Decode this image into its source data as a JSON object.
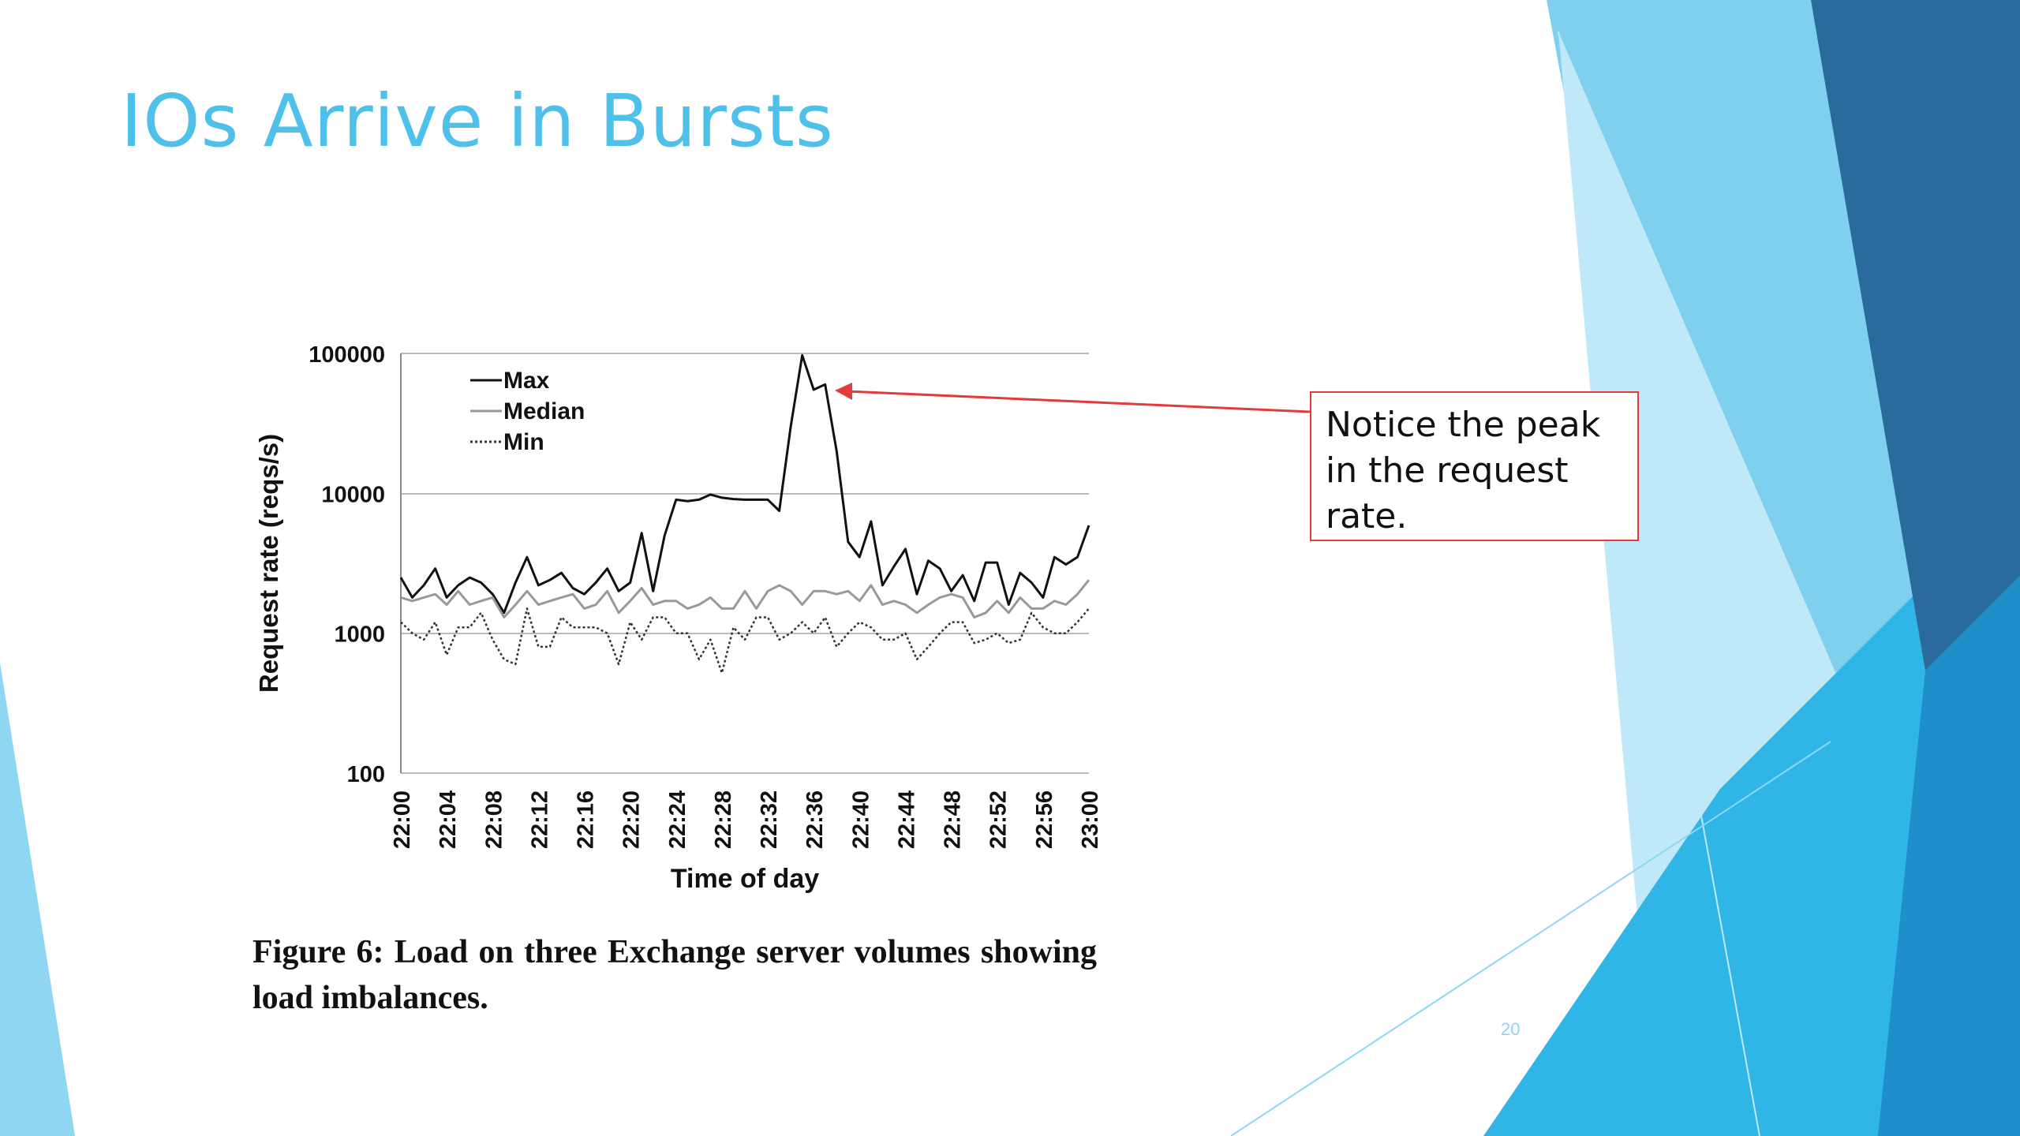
{
  "slide": {
    "title": "IOs Arrive in Bursts",
    "caption": "Figure 6:  Load on three Exchange server volumes showing load imbalances.",
    "callout": "Notice the peak in the request rate.",
    "page_number": "20",
    "colors": {
      "title": "#4fc0ea",
      "accent": "#e23b3b",
      "decor_light": "#7fd0ef",
      "decor_mid": "#2fb0e0",
      "decor_dark": "#2a6a9c"
    }
  },
  "chart_data": {
    "type": "line",
    "title": "",
    "xlabel": "Time of day",
    "ylabel": "Request rate (reqs/s)",
    "yscale": "log",
    "ylim": [
      100,
      100000
    ],
    "yticks": [
      "100000",
      "10000",
      "1000",
      "100"
    ],
    "xticks": [
      "22:00",
      "22:04",
      "22:08",
      "22:12",
      "22:16",
      "22:20",
      "22:24",
      "22:28",
      "22:32",
      "22:36",
      "22:40",
      "22:44",
      "22:48",
      "22:52",
      "22:56",
      "23:00"
    ],
    "grid": "horizontal",
    "legend_position": "top-left",
    "x_minutes": [
      0,
      1,
      2,
      3,
      4,
      5,
      6,
      7,
      8,
      9,
      10,
      11,
      12,
      13,
      14,
      15,
      16,
      17,
      18,
      19,
      20,
      21,
      22,
      23,
      24,
      25,
      26,
      27,
      28,
      29,
      30,
      31,
      32,
      33,
      34,
      35,
      36,
      37,
      38,
      39,
      40,
      41,
      42,
      43,
      44,
      45,
      46,
      47,
      48,
      49,
      50,
      51,
      52,
      53,
      54,
      55,
      56,
      57,
      58,
      59,
      60
    ],
    "series": [
      {
        "name": "Max",
        "style": "solid",
        "color": "#111111",
        "values": [
          2500,
          1800,
          2200,
          2900,
          1800,
          2200,
          2500,
          2300,
          1900,
          1400,
          2300,
          3500,
          2200,
          2400,
          2700,
          2100,
          1900,
          2300,
          2900,
          2000,
          2300,
          5200,
          2000,
          5000,
          9000,
          8800,
          9000,
          9800,
          9300,
          9100,
          9000,
          9000,
          9000,
          7500,
          30000,
          97000,
          55000,
          60000,
          20000,
          4500,
          3500,
          6300,
          2200,
          3000,
          4000,
          1900,
          3300,
          2900,
          2000,
          2600,
          1700,
          3200,
          3200,
          1600,
          2700,
          2300,
          1800,
          3500,
          3100,
          3500,
          5900
        ]
      },
      {
        "name": "Median",
        "style": "solid",
        "color": "#999999",
        "values": [
          1800,
          1700,
          1800,
          1900,
          1600,
          2000,
          1600,
          1700,
          1800,
          1300,
          1600,
          2000,
          1600,
          1700,
          1800,
          1900,
          1500,
          1600,
          2000,
          1400,
          1700,
          2100,
          1600,
          1700,
          1700,
          1500,
          1600,
          1800,
          1500,
          1500,
          2000,
          1500,
          2000,
          2200,
          2000,
          1600,
          2000,
          2000,
          1900,
          2000,
          1700,
          2200,
          1600,
          1700,
          1600,
          1400,
          1600,
          1800,
          1900,
          1800,
          1300,
          1400,
          1700,
          1400,
          1800,
          1500,
          1500,
          1700,
          1600,
          1900,
          2400
        ]
      },
      {
        "name": "Min",
        "style": "dotted",
        "color": "#333333",
        "values": [
          1200,
          1000,
          900,
          1200,
          700,
          1100,
          1100,
          1400,
          900,
          650,
          600,
          1500,
          800,
          800,
          1300,
          1100,
          1100,
          1100,
          1000,
          600,
          1200,
          900,
          1300,
          1300,
          1000,
          1000,
          650,
          900,
          520,
          1100,
          900,
          1300,
          1300,
          900,
          1000,
          1200,
          1000,
          1300,
          800,
          1000,
          1200,
          1100,
          900,
          900,
          1000,
          650,
          800,
          1000,
          1200,
          1200,
          850,
          900,
          1000,
          850,
          900,
          1400,
          1100,
          1000,
          1000,
          1200,
          1500
        ]
      }
    ]
  }
}
